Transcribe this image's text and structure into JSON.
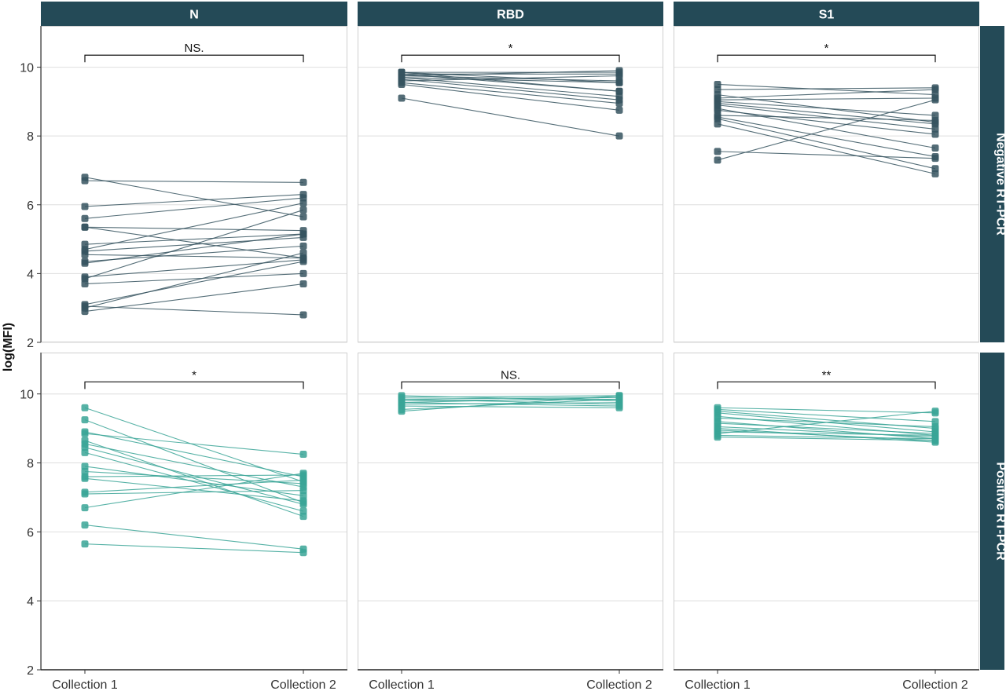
{
  "chart_data": {
    "type": "line",
    "ylabel": "log(MFI)",
    "x_categories": [
      "Collection 1",
      "Collection 2"
    ],
    "ylim": [
      2,
      11.2
    ],
    "y_ticks": [
      2,
      4,
      6,
      8,
      10
    ],
    "grid": true,
    "columns": [
      "N",
      "RBD",
      "S1"
    ],
    "rows": [
      "Negative RT-PCR",
      "Positive RT-PCR"
    ],
    "colors": {
      "Negative RT-PCR": "#36535F",
      "Positive RT-PCR": "#3AA596",
      "strip": "#244A57"
    },
    "panels": [
      {
        "column": "N",
        "row": "Negative RT-PCR",
        "significance": "NS.",
        "pairs": [
          [
            6.8,
            5.65
          ],
          [
            6.7,
            6.65
          ],
          [
            5.95,
            6.3
          ],
          [
            5.6,
            6.2
          ],
          [
            5.35,
            5.25
          ],
          [
            5.35,
            4.45
          ],
          [
            4.85,
            5.15
          ],
          [
            4.7,
            6.05
          ],
          [
            4.65,
            5.05
          ],
          [
            4.55,
            4.45
          ],
          [
            4.35,
            4.8
          ],
          [
            4.3,
            5.15
          ],
          [
            3.9,
            4.4
          ],
          [
            3.85,
            5.85
          ],
          [
            3.7,
            4.0
          ],
          [
            3.1,
            4.35
          ],
          [
            3.0,
            4.6
          ],
          [
            3.05,
            2.8
          ],
          [
            2.9,
            3.7
          ]
        ]
      },
      {
        "column": "RBD",
        "row": "Negative RT-PCR",
        "significance": "*",
        "pairs": [
          [
            9.85,
            9.85
          ],
          [
            9.85,
            9.55
          ],
          [
            9.85,
            9.3
          ],
          [
            9.8,
            9.8
          ],
          [
            9.8,
            9.3
          ],
          [
            9.75,
            9.9
          ],
          [
            9.75,
            9.6
          ],
          [
            9.7,
            9.55
          ],
          [
            9.7,
            9.15
          ],
          [
            9.65,
            9.05
          ],
          [
            9.6,
            9.75
          ],
          [
            9.55,
            8.95
          ],
          [
            9.5,
            8.75
          ],
          [
            9.1,
            8.0
          ]
        ]
      },
      {
        "column": "S1",
        "row": "Negative RT-PCR",
        "significance": "*",
        "pairs": [
          [
            9.5,
            9.2
          ],
          [
            9.35,
            9.4
          ],
          [
            9.2,
            8.4
          ],
          [
            9.1,
            9.35
          ],
          [
            9.05,
            9.1
          ],
          [
            9.0,
            8.6
          ],
          [
            8.95,
            8.35
          ],
          [
            8.9,
            8.2
          ],
          [
            8.8,
            7.65
          ],
          [
            8.75,
            8.05
          ],
          [
            8.6,
            8.45
          ],
          [
            8.55,
            7.4
          ],
          [
            8.5,
            7.05
          ],
          [
            8.35,
            6.9
          ],
          [
            7.55,
            7.35
          ],
          [
            7.3,
            9.05
          ]
        ]
      },
      {
        "column": "N",
        "row": "Positive RT-PCR",
        "significance": "*",
        "pairs": [
          [
            9.6,
            7.45
          ],
          [
            9.25,
            6.85
          ],
          [
            8.9,
            7.6
          ],
          [
            8.85,
            8.25
          ],
          [
            8.65,
            6.45
          ],
          [
            8.55,
            7.3
          ],
          [
            8.45,
            6.8
          ],
          [
            8.3,
            6.6
          ],
          [
            7.9,
            7.05
          ],
          [
            7.75,
            7.4
          ],
          [
            7.6,
            7.65
          ],
          [
            7.55,
            6.9
          ],
          [
            7.15,
            7.5
          ],
          [
            7.1,
            7.2
          ],
          [
            6.7,
            7.7
          ],
          [
            6.2,
            5.5
          ],
          [
            5.65,
            5.4
          ]
        ]
      },
      {
        "column": "RBD",
        "row": "Positive RT-PCR",
        "significance": "NS.",
        "pairs": [
          [
            9.95,
            9.8
          ],
          [
            9.9,
            9.95
          ],
          [
            9.85,
            9.7
          ],
          [
            9.85,
            9.9
          ],
          [
            9.8,
            9.85
          ],
          [
            9.75,
            9.65
          ],
          [
            9.75,
            9.9
          ],
          [
            9.7,
            9.75
          ],
          [
            9.65,
            9.6
          ],
          [
            9.5,
            9.95
          ],
          [
            9.55,
            9.85
          ]
        ]
      },
      {
        "column": "S1",
        "row": "Positive RT-PCR",
        "significance": "**",
        "pairs": [
          [
            9.6,
            9.45
          ],
          [
            9.55,
            9.2
          ],
          [
            9.5,
            9.0
          ],
          [
            9.45,
            8.9
          ],
          [
            9.35,
            8.8
          ],
          [
            9.3,
            9.05
          ],
          [
            9.2,
            8.7
          ],
          [
            9.15,
            8.85
          ],
          [
            9.05,
            8.75
          ],
          [
            9.0,
            8.6
          ],
          [
            8.95,
            8.65
          ],
          [
            8.9,
            8.8
          ],
          [
            8.85,
            9.5
          ],
          [
            8.8,
            8.7
          ],
          [
            8.75,
            8.65
          ]
        ]
      }
    ]
  }
}
